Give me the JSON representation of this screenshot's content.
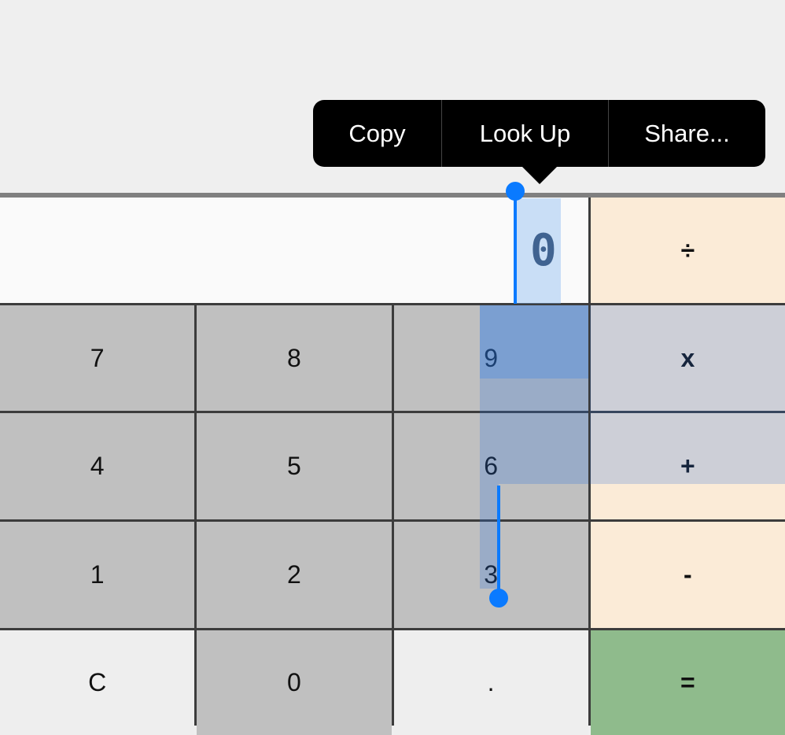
{
  "display": {
    "value": "0"
  },
  "keys": {
    "divide": "÷",
    "seven": "7",
    "eight": "8",
    "nine": "9",
    "multiply": "x",
    "four": "4",
    "five": "5",
    "six": "6",
    "add": "+",
    "one": "1",
    "two": "2",
    "three": "3",
    "subtract": "-",
    "clear": "C",
    "zero": "0",
    "decimal": ".",
    "equals": "="
  },
  "context_menu": {
    "items": [
      "Copy",
      "Look Up",
      "Share..."
    ]
  },
  "colors": {
    "selection_handle": "#0a7aff",
    "operator": "#fbebd7",
    "equals": "#8fbb8c",
    "digit": "#c0c0c0"
  }
}
